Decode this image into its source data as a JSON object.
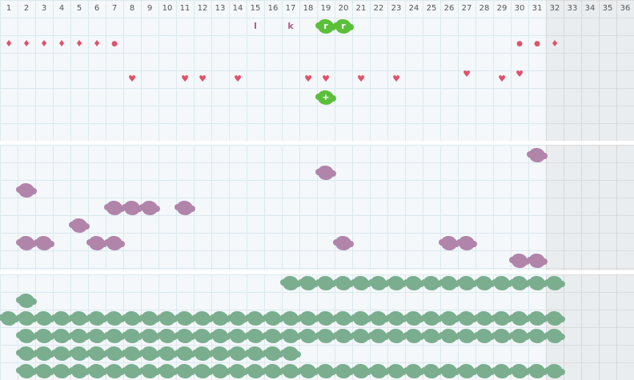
{
  "header": {
    "columns": [
      "1",
      "2",
      "3",
      "4",
      "5",
      "6",
      "7",
      "8",
      "9",
      "10",
      "11",
      "12",
      "13",
      "14",
      "15",
      "16",
      "17",
      "18",
      "19",
      "20",
      "21",
      "22",
      "23",
      "24",
      "25",
      "26",
      "27",
      "28",
      "29",
      "30",
      "31",
      "32",
      "33",
      "34",
      "35",
      "36"
    ]
  },
  "panel_top": {
    "letters": [
      {
        "col": 15,
        "row": 1,
        "text": "l"
      },
      {
        "col": 17,
        "row": 1,
        "text": "k"
      }
    ],
    "badges": [
      {
        "col": 19,
        "row": 1,
        "text": "r"
      },
      {
        "col": 20,
        "row": 1,
        "text": "r"
      },
      {
        "col": 19,
        "row": 5,
        "text": "+"
      }
    ],
    "drops": [
      {
        "col": 1,
        "row": 2
      },
      {
        "col": 2,
        "row": 2
      },
      {
        "col": 3,
        "row": 2
      },
      {
        "col": 4,
        "row": 2
      },
      {
        "col": 5,
        "row": 2
      },
      {
        "col": 6,
        "row": 2
      },
      {
        "col": 32,
        "row": 2
      }
    ],
    "dots": [
      {
        "col": 7,
        "row": 2
      },
      {
        "col": 30,
        "row": 2
      },
      {
        "col": 31,
        "row": 2
      }
    ],
    "hearts": [
      {
        "col": 8,
        "row": 4
      },
      {
        "col": 11,
        "row": 4
      },
      {
        "col": 12,
        "row": 4
      },
      {
        "col": 14,
        "row": 4
      },
      {
        "col": 18,
        "row": 4
      },
      {
        "col": 19,
        "row": 4
      },
      {
        "col": 21,
        "row": 4
      },
      {
        "col": 23,
        "row": 4
      },
      {
        "col": 27,
        "row": 4
      },
      {
        "col": 29,
        "row": 4
      },
      {
        "col": 30,
        "row": 4
      }
    ],
    "icons": {
      "drop": "drop-icon",
      "dot": "dot-icon",
      "heart": "heart-icon",
      "badge": "badge-icon"
    },
    "symbols": {
      "drop": "♦",
      "dot": "●",
      "heart": "♥"
    }
  },
  "panel_mid": {
    "blobs": [
      {
        "col": 31,
        "row": 0
      },
      {
        "col": 19,
        "row": 1
      },
      {
        "col": 2,
        "row": 2
      },
      {
        "col": 7,
        "row": 3
      },
      {
        "col": 8,
        "row": 3
      },
      {
        "col": 9,
        "row": 3
      },
      {
        "col": 11,
        "row": 3
      },
      {
        "col": 5,
        "row": 4
      },
      {
        "col": 2,
        "row": 5
      },
      {
        "col": 3,
        "row": 5
      },
      {
        "col": 6,
        "row": 5
      },
      {
        "col": 7,
        "row": 5
      },
      {
        "col": 20,
        "row": 5
      },
      {
        "col": 26,
        "row": 5
      },
      {
        "col": 27,
        "row": 5
      },
      {
        "col": 30,
        "row": 6
      },
      {
        "col": 31,
        "row": 6
      }
    ]
  },
  "panel_bot": {
    "rows": [
      {
        "from": 17,
        "to": 32
      },
      {
        "from": 2,
        "to": 2
      },
      {
        "from": 1,
        "to": 32
      },
      {
        "from": 2,
        "to": 32
      },
      {
        "from": 2,
        "to": 17
      },
      {
        "from": 2,
        "to": 32
      }
    ]
  },
  "colors": {
    "heart": "#e0526a",
    "purple": "#b184aa",
    "green": "#7aae8e",
    "lime": "#5bbf3a",
    "grid": "#dbe9ee"
  }
}
